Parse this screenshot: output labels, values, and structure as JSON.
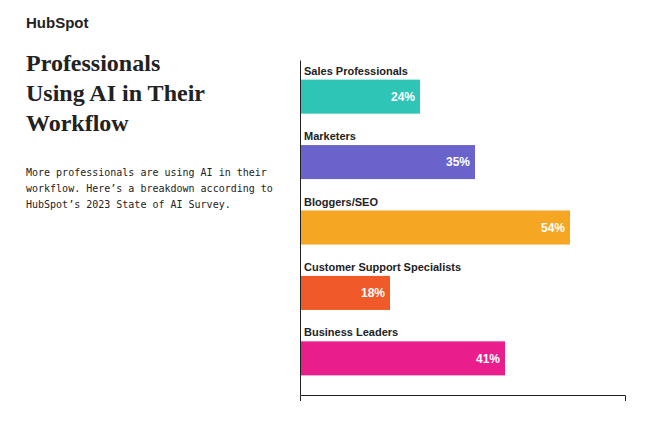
{
  "chart_data": {
    "type": "bar",
    "orientation": "horizontal",
    "title": "Professionals\nUsing AI in Their\nWorkflow",
    "subtitle": "More professionals are using AI in their\nworkflow. Here’s a breakdown according to\nHubSpot’s 2023 State of AI Survey.",
    "annotations": [
      "HubSpot"
    ],
    "categories": [
      "Sales Professionals",
      "Marketers",
      "Bloggers/SEO",
      "Customer Support Specialists",
      "Business Leaders"
    ],
    "values": [
      24,
      35,
      54,
      18,
      41
    ],
    "value_labels": [
      "24%",
      "35%",
      "54%",
      "18%",
      "41%"
    ],
    "colors": [
      "#2ec4b6",
      "#6b63cc",
      "#f5a623",
      "#f05a28",
      "#e91e8c"
    ],
    "xlim": [
      0,
      65
    ],
    "data_labels": true,
    "tick_labels": "y",
    "grid": false
  }
}
